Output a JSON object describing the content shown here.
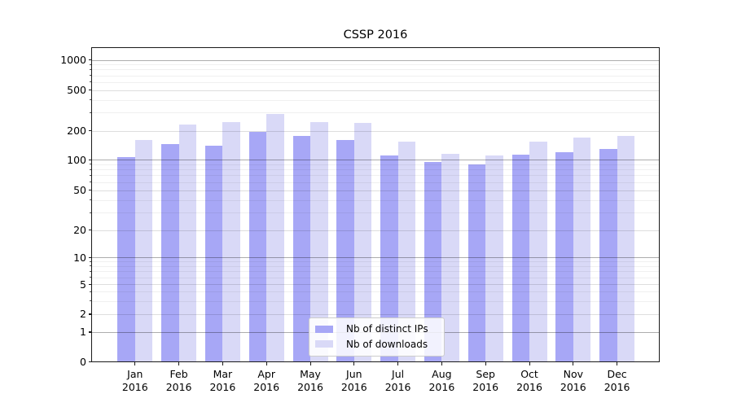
{
  "figure": {
    "title": "CSSP 2016"
  },
  "chart_data": {
    "type": "bar",
    "title": "CSSP 2016",
    "categories": [
      "Jan 2016",
      "Feb 2016",
      "Mar 2016",
      "Apr 2016",
      "May 2016",
      "Jun 2016",
      "Jul 2016",
      "Aug 2016",
      "Sep 2016",
      "Oct 2016",
      "Nov 2016",
      "Dec 2016"
    ],
    "series": [
      {
        "name": "Nb of distinct IPs",
        "color": "#a7a7f6",
        "values": [
          107,
          145,
          140,
          195,
          175,
          160,
          110,
          95,
          89,
          112,
          120,
          130
        ]
      },
      {
        "name": "Nb of downloads",
        "color": "#d9d9f7",
        "values": [
          160,
          230,
          245,
          290,
          245,
          240,
          155,
          115,
          110,
          155,
          170,
          175
        ]
      }
    ],
    "xlabel": "",
    "ylabel": "",
    "yscale": "symlog",
    "yticks": [
      0,
      1,
      2,
      5,
      10,
      20,
      50,
      100,
      200,
      500,
      1000
    ],
    "yticks_minor": [
      3,
      4,
      6,
      7,
      8,
      9,
      30,
      40,
      60,
      70,
      80,
      90,
      300,
      400,
      600,
      700,
      800,
      900
    ],
    "ylim": [
      0,
      1300
    ],
    "grid": true,
    "legend_position": "lower center"
  }
}
